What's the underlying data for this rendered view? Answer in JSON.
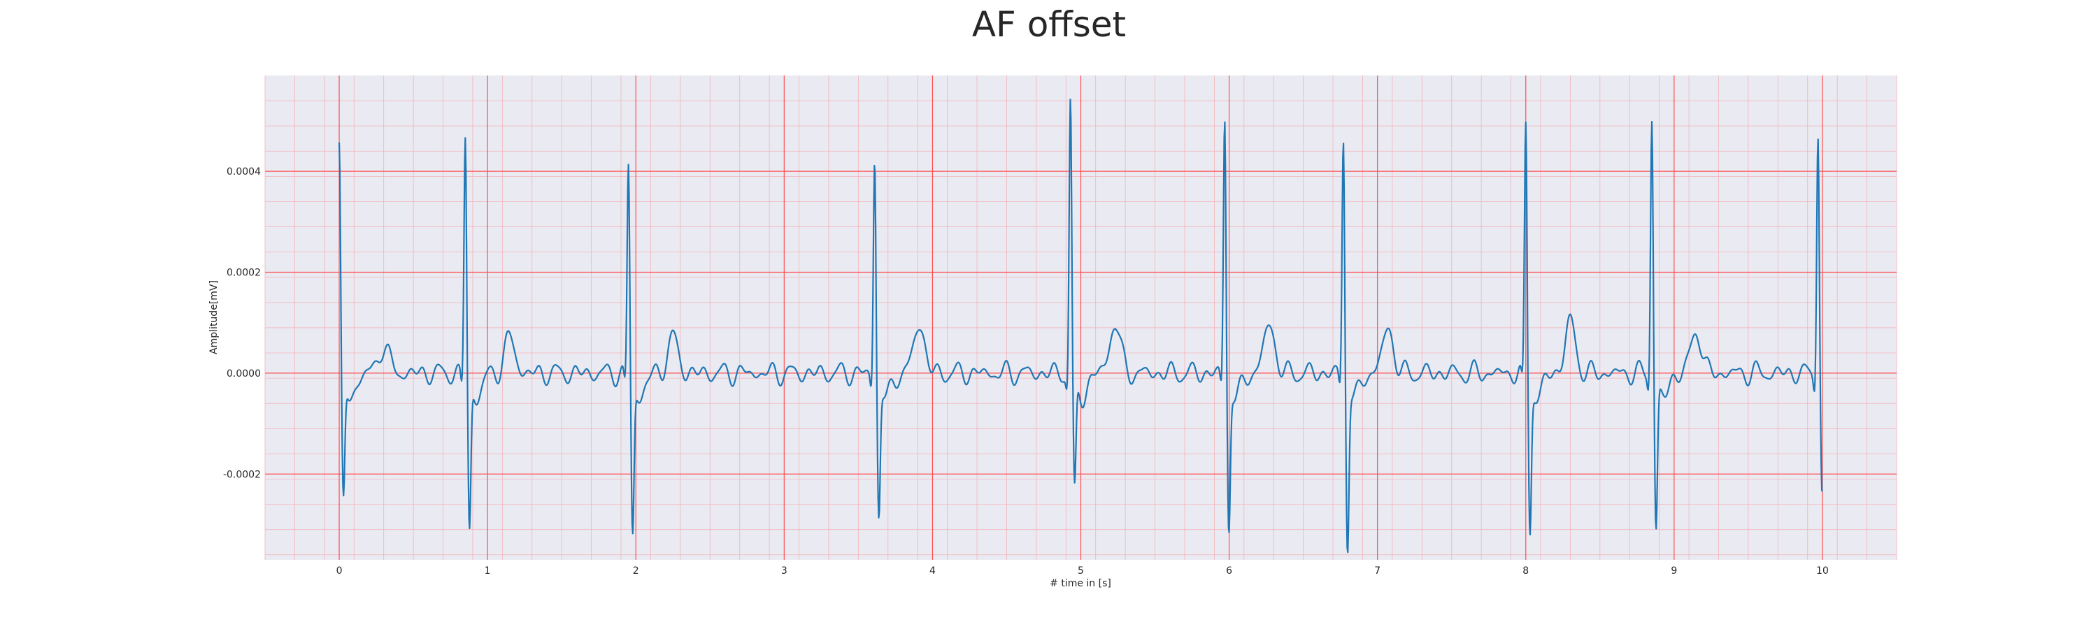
{
  "chart_data": {
    "type": "line",
    "title": "AF offset",
    "xlabel": "# time in [s]",
    "ylabel": "Amplitude[mV]",
    "xlim": [
      -0.5,
      10.5
    ],
    "ylim": [
      -0.00037,
      0.00059
    ],
    "x_ticks": [
      0,
      1,
      2,
      3,
      4,
      5,
      6,
      7,
      8,
      9,
      10
    ],
    "x_tick_labels": [
      "0",
      "1",
      "2",
      "3",
      "4",
      "5",
      "6",
      "7",
      "8",
      "9",
      "10"
    ],
    "y_ticks": [
      -0.0002,
      0.0,
      0.0002,
      0.0004
    ],
    "y_tick_labels": [
      "-0.0002",
      "0.0000",
      "0.0002",
      "0.0004"
    ],
    "grid": true,
    "grid_major_color": "#ff4d4d",
    "grid_minor_color": "#f3b3b8",
    "background_color": "#eaeaf2",
    "series": [
      {
        "color": "#1f77b4",
        "beats": [
          {
            "t": 0.0,
            "r": 0.000455,
            "s": -0.00024
          },
          {
            "t": 0.85,
            "r": 0.00048,
            "s": -0.000295
          },
          {
            "t": 1.95,
            "r": 0.00042,
            "s": -0.0003
          },
          {
            "t": 3.61,
            "r": 0.000435,
            "s": -0.000265
          },
          {
            "t": 4.93,
            "r": 0.00055,
            "s": -0.00022
          },
          {
            "t": 5.97,
            "r": 0.000515,
            "s": -0.00029
          },
          {
            "t": 6.77,
            "r": 0.000475,
            "s": -0.000325
          },
          {
            "t": 8.0,
            "r": 0.0005,
            "s": -0.00029
          },
          {
            "t": 8.85,
            "r": 0.00052,
            "s": -0.00029
          },
          {
            "t": 9.97,
            "r": 0.000495,
            "s": -0.00023
          }
        ],
        "t_wave_amplitudes": [
          5.5e-05,
          7e-05,
          7e-05,
          0.0001,
          0.0001,
          0.0001,
          9e-05,
          0.0001,
          8.5e-05,
          5e-05
        ],
        "x_range": [
          0.0,
          10.0
        ]
      }
    ]
  }
}
